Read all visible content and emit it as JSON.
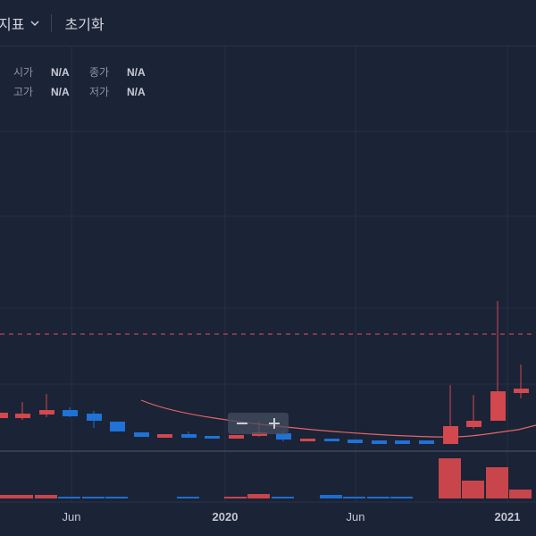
{
  "toolbar": {
    "indicators_label": "지표",
    "reset_label": "초기화"
  },
  "ohlc": {
    "open_label": "시가",
    "open_value": "N/A",
    "close_label": "종가",
    "close_value": "N/A",
    "high_label": "고가",
    "high_value": "N/A",
    "low_label": "저가",
    "low_value": "N/A"
  },
  "axis": {
    "labels": [
      "Jun",
      "2020",
      "Jun",
      "2021"
    ]
  },
  "colors": {
    "background": "#1b2336",
    "up": "#d2484e",
    "down": "#1f72d6",
    "ma": "#e06666",
    "dashed_line": "#a0444a"
  },
  "icons": [
    "chevron-down-icon",
    "zoom-out-icon",
    "zoom-in-icon"
  ],
  "chart_data": {
    "type": "candlestick",
    "series": [
      {
        "name": "",
        "values": []
      }
    ],
    "axis_labels": [
      "Jun",
      "2020",
      "Jun",
      "2021"
    ],
    "grid": true
  }
}
